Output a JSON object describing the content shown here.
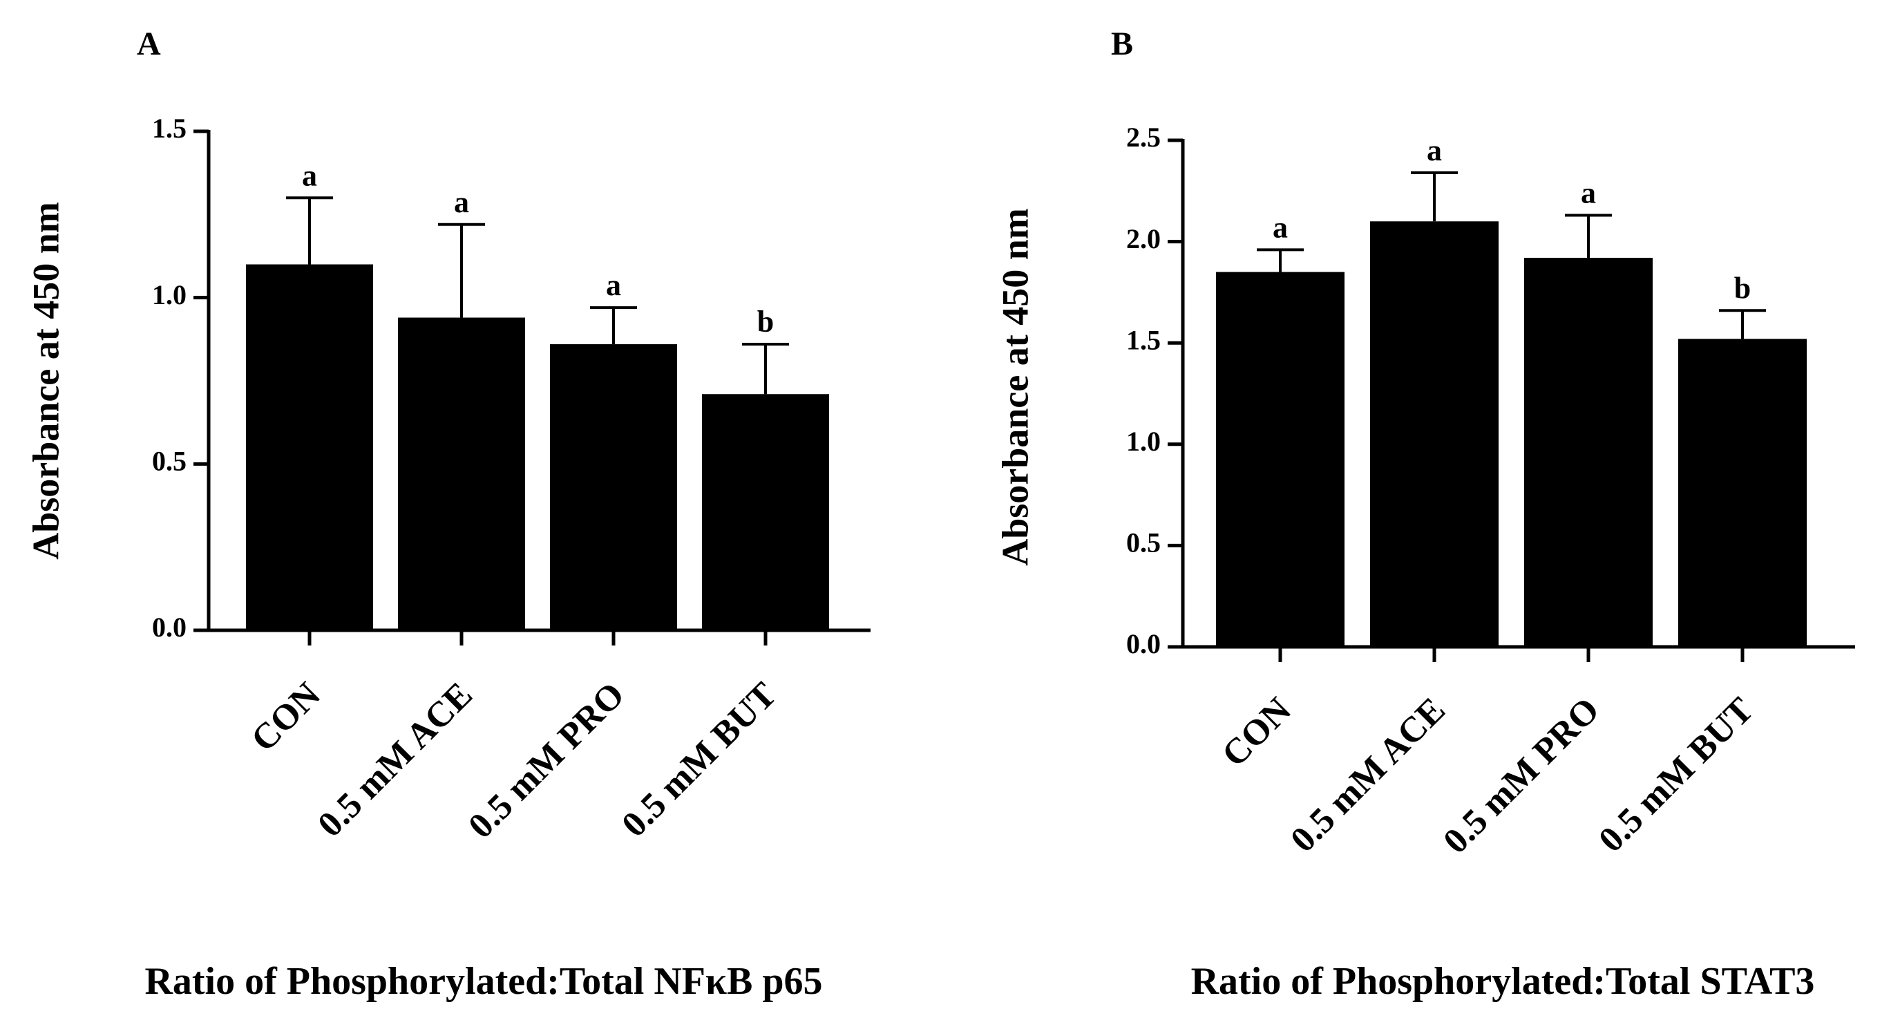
{
  "chart_data": [
    {
      "type": "bar",
      "panel_label": "A",
      "title": "Ratio of Phosphorylated:Total NFκB p65",
      "xlabel": "",
      "ylabel": "Absorbance at 450 nm",
      "ylim": [
        0,
        1.5
      ],
      "yticks": [
        0,
        0.5,
        1.0,
        1.5
      ],
      "ytick_labels": [
        "0.0",
        "0.5",
        "1.0",
        "1.5"
      ],
      "categories": [
        "CON",
        "0.5 mM ACE",
        "0.5 mM PRO",
        "0.5 mM BUT"
      ],
      "values": [
        1.1,
        0.94,
        0.86,
        0.71
      ],
      "errors": [
        0.2,
        0.28,
        0.11,
        0.15
      ],
      "significance": [
        "a",
        "a",
        "a",
        "b"
      ],
      "grid": false
    },
    {
      "type": "bar",
      "panel_label": "B",
      "title": "Ratio of Phosphorylated:Total STAT3",
      "xlabel": "",
      "ylabel": "Absorbance at 450 nm",
      "ylim": [
        0,
        2.5
      ],
      "yticks": [
        0,
        0.5,
        1.0,
        1.5,
        2.0,
        2.5
      ],
      "ytick_labels": [
        "0.0",
        "0.5",
        "1.0",
        "1.5",
        "2.0",
        "2.5"
      ],
      "categories": [
        "CON",
        "0.5 mM ACE",
        "0.5 mM PRO",
        "0.5 mM BUT"
      ],
      "values": [
        1.85,
        2.1,
        1.92,
        1.52
      ],
      "errors": [
        0.11,
        0.24,
        0.21,
        0.14
      ],
      "significance": [
        "a",
        "a",
        "a",
        "b"
      ],
      "grid": false
    }
  ]
}
